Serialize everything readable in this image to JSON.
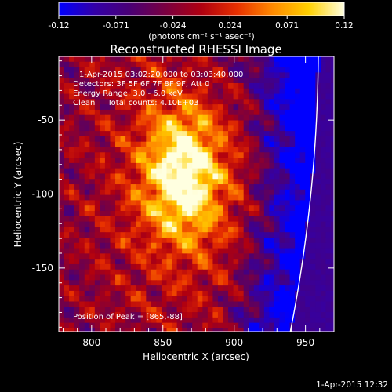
{
  "chart_data": {
    "type": "heatmap",
    "title": "Reconstructed RHESSI Image",
    "xlabel": "Heliocentric X (arcsec)",
    "ylabel": "Heliocentric Y (arcsec)",
    "xlim": [
      777,
      970
    ],
    "ylim": [
      -193,
      -7
    ],
    "xticks": [
      800,
      850,
      900,
      950
    ],
    "yticks": [
      -50,
      -100,
      -150
    ],
    "colorbar": {
      "range": [
        -0.12,
        0.12
      ],
      "ticks": [
        "-0.12",
        "-0.071",
        "-0.024",
        "0.024",
        "0.071",
        "0.12"
      ],
      "unit_label": "(photons cm⁻² s⁻¹ asec⁻²)",
      "colors": [
        "#0000ff",
        "#3300a8",
        "#4a0075",
        "#7a0040",
        "#b00010",
        "#e83000",
        "#ff8a00",
        "#ffd000",
        "#ffffe0"
      ]
    },
    "annotations": [
      "1-Apr-2015 03:02:20.000 to 03:03:40.000",
      "Detectors: 3F 5F 6F 7F 8F 9F, Att 0",
      "Energy Range: 3.0 - 6.0 keV",
      "Clean     Total counts: 4.10E+03"
    ],
    "peak_label": "Position of Peak = [865,-88]",
    "peak": [
      865,
      -88
    ],
    "limb_color": "#ffffff",
    "timestamp": "1-Apr-2015 12:32"
  }
}
